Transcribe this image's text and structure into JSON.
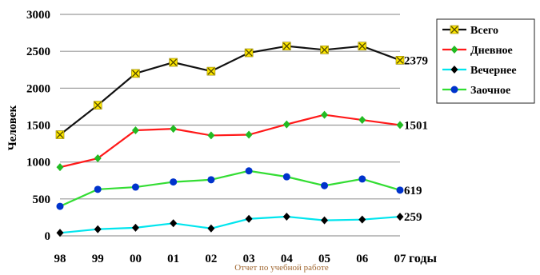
{
  "chart_data": {
    "type": "line",
    "categories": [
      "98",
      "99",
      "00",
      "01",
      "02",
      "03",
      "04",
      "05",
      "06",
      "07"
    ],
    "ylabel": "Человек",
    "x_unit_label": "годы",
    "ylim": [
      0,
      3000
    ],
    "yticks": [
      "0",
      "500",
      "1000",
      "1500",
      "2000",
      "2500",
      "3000"
    ],
    "grid": "horizontal",
    "legend_position": "top-right",
    "series": [
      {
        "name": "Всего",
        "color": "#111111",
        "marker": "x-square",
        "marker_color": "#ffe800",
        "values": [
          1370,
          1770,
          2200,
          2350,
          2230,
          2480,
          2570,
          2520,
          2570,
          2379
        ],
        "end_label": "2379"
      },
      {
        "name": "Дневное",
        "color": "#ff1a1a",
        "marker": "diamond",
        "marker_color": "#22bb22",
        "values": [
          930,
          1050,
          1430,
          1450,
          1360,
          1370,
          1510,
          1640,
          1570,
          1501
        ],
        "end_label": "1501"
      },
      {
        "name": "Вечернее",
        "color": "#00e5ee",
        "marker": "diamond",
        "marker_color": "#000000",
        "values": [
          40,
          90,
          110,
          170,
          100,
          230,
          260,
          210,
          220,
          259
        ],
        "end_label": "259"
      },
      {
        "name": "Заочное",
        "color": "#33dd33",
        "marker": "circle",
        "marker_color": "#0033cc",
        "values": [
          400,
          630,
          660,
          730,
          760,
          880,
          800,
          680,
          770,
          619
        ],
        "end_label": "619"
      }
    ],
    "watermark": "Отчет по учебной работе"
  }
}
